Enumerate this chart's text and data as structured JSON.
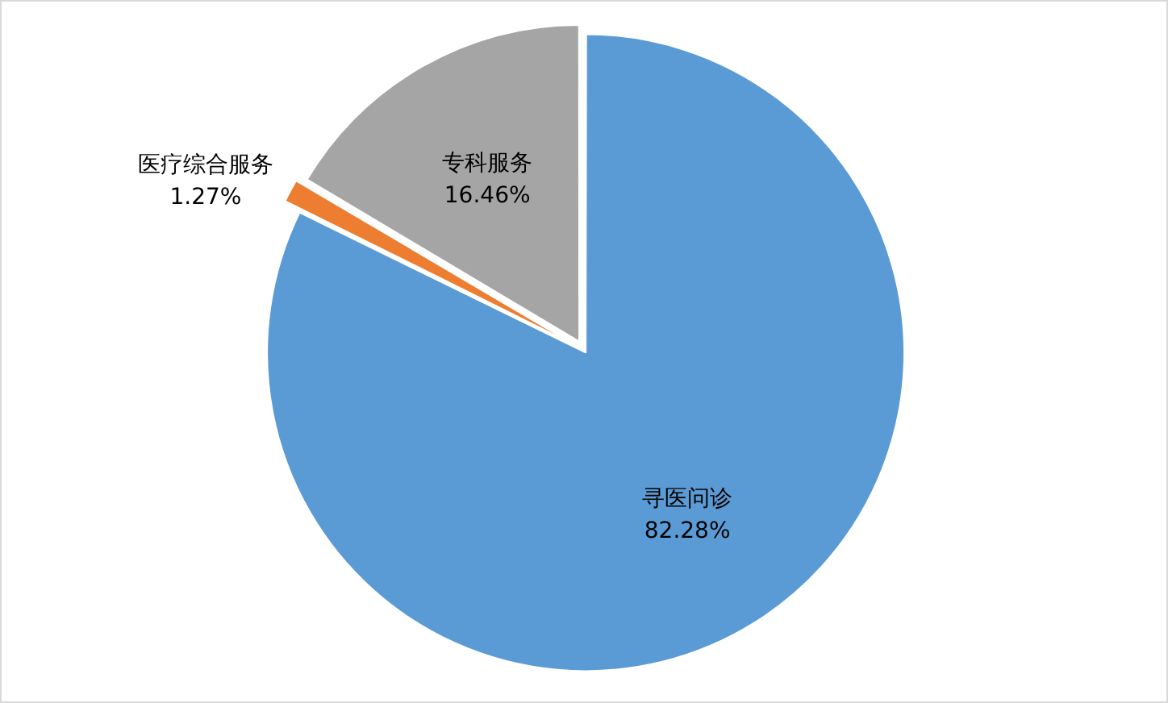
{
  "chart_data": {
    "type": "pie",
    "categories": [
      "寻医问诊",
      "医疗综合服务",
      "专科服务"
    ],
    "values": [
      82.28,
      1.27,
      16.46
    ],
    "colors": [
      "#5b9bd5",
      "#ed7d31",
      "#a5a5a5"
    ],
    "value_labels": [
      "82.28%",
      "1.27%",
      "16.46%"
    ],
    "legend": false
  }
}
